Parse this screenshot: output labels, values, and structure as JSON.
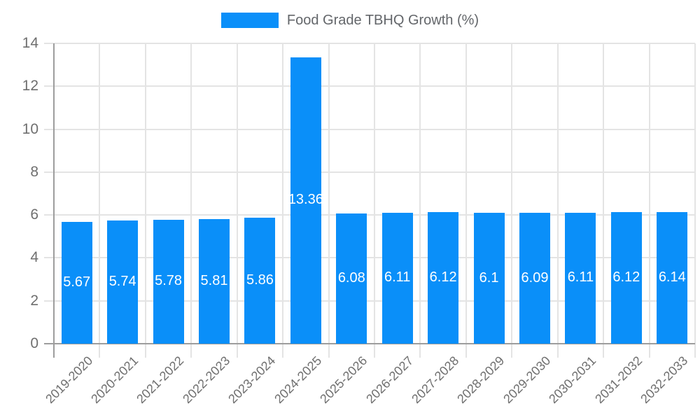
{
  "chart_data": {
    "type": "bar",
    "title": "Food Grade TBHQ Growth (%)",
    "categories": [
      "2019-2020",
      "2020-2021",
      "2021-2022",
      "2022-2023",
      "2023-2024",
      "2024-2025",
      "2025-2026",
      "2026-2027",
      "2027-2028",
      "2028-2029",
      "2029-2030",
      "2030-2031",
      "2031-2032",
      "2032-2033"
    ],
    "values": [
      5.67,
      5.74,
      5.78,
      5.81,
      5.86,
      13.36,
      6.08,
      6.11,
      6.12,
      6.1,
      6.09,
      6.11,
      6.12,
      6.14
    ],
    "value_labels": [
      "5.67",
      "5.74",
      "5.78",
      "5.81",
      "5.86",
      "13.36",
      "6.08",
      "6.11",
      "6.12",
      "6.1",
      "6.09",
      "6.11",
      "6.12",
      "6.14"
    ],
    "xlabel": "",
    "ylabel": "",
    "ylim": [
      0,
      14
    ],
    "yticks": [
      0,
      2,
      4,
      6,
      8,
      10,
      12,
      14
    ],
    "grid": true,
    "legend_position": "top-center",
    "colors": {
      "bar": "#0a8ff9",
      "grid": "#e4e4e4",
      "axis": "#9d9d9d",
      "tick_text": "#6f6f6f",
      "legend_text": "#63666a",
      "bar_label_text": "#ffffff"
    }
  }
}
